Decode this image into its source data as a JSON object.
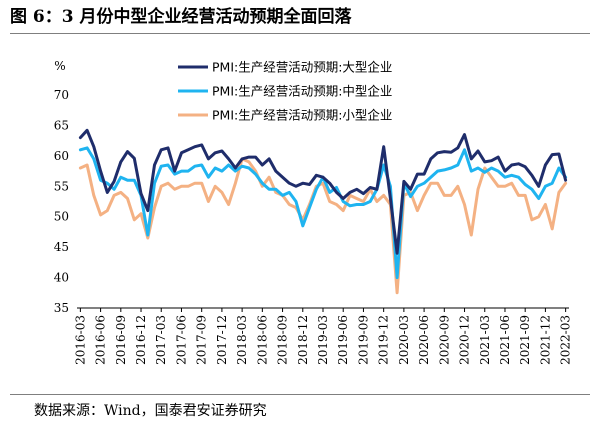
{
  "title": "图 6：3 月份中型企业经营活动预期全面回落",
  "source": "数据来源：Wind，国泰君安证券研究",
  "colors": {
    "large": "#1F2D6B",
    "medium": "#1FB4F0",
    "small": "#F4B183",
    "axis": "#000000",
    "rule": "#7F7F7F"
  },
  "chart_data": {
    "type": "line",
    "ylabel": "%",
    "ylim": [
      35,
      70
    ],
    "yticks": [
      35,
      40,
      45,
      50,
      55,
      60,
      65,
      70
    ],
    "grid": false,
    "legend_position": "top-right",
    "x": [
      "2016-03",
      "2016-04",
      "2016-05",
      "2016-06",
      "2016-07",
      "2016-08",
      "2016-09",
      "2016-10",
      "2016-11",
      "2016-12",
      "2017-01",
      "2017-02",
      "2017-03",
      "2017-04",
      "2017-05",
      "2017-06",
      "2017-07",
      "2017-08",
      "2017-09",
      "2017-10",
      "2017-11",
      "2017-12",
      "2018-01",
      "2018-02",
      "2018-03",
      "2018-04",
      "2018-05",
      "2018-06",
      "2018-07",
      "2018-08",
      "2018-09",
      "2018-10",
      "2018-11",
      "2018-12",
      "2019-01",
      "2019-02",
      "2019-03",
      "2019-04",
      "2019-05",
      "2019-06",
      "2019-07",
      "2019-08",
      "2019-09",
      "2019-10",
      "2019-11",
      "2019-12",
      "2020-01",
      "2020-02",
      "2020-03",
      "2020-04",
      "2020-05",
      "2020-06",
      "2020-07",
      "2020-08",
      "2020-09",
      "2020-10",
      "2020-11",
      "2020-12",
      "2021-01",
      "2021-02",
      "2021-03",
      "2021-04",
      "2021-05",
      "2021-06",
      "2021-07",
      "2021-08",
      "2021-09",
      "2021-10",
      "2021-11",
      "2021-12",
      "2022-01",
      "2022-02",
      "2022-03"
    ],
    "xtick_labels": [
      "2016-03",
      "2016-06",
      "2016-09",
      "2016-12",
      "2017-03",
      "2017-06",
      "2017-09",
      "2017-12",
      "2018-03",
      "2018-06",
      "2018-09",
      "2018-12",
      "2019-03",
      "2019-06",
      "2019-09",
      "2019-12",
      "2020-03",
      "2020-06",
      "2020-09",
      "2020-12",
      "2021-03",
      "2021-06",
      "2021-09",
      "2021-12",
      "2022-03"
    ],
    "series": [
      {
        "key": "large",
        "name": "PMI:生产经营活动预期:大型企业",
        "values": [
          63.0,
          64.2,
          61.5,
          57.5,
          54.0,
          55.8,
          59.0,
          60.7,
          59.6,
          53.8,
          51.0,
          58.5,
          61.0,
          61.3,
          57.5,
          60.5,
          61.0,
          61.5,
          61.8,
          59.5,
          60.5,
          60.8,
          59.5,
          58.0,
          59.5,
          59.8,
          59.8,
          58.5,
          59.5,
          57.5,
          56.5,
          55.5,
          55.0,
          55.5,
          55.3,
          56.8,
          56.5,
          55.5,
          54.0,
          53.0,
          54.0,
          54.5,
          53.8,
          54.8,
          54.5,
          61.5,
          53.0,
          44.0,
          55.8,
          54.5,
          57.0,
          57.0,
          59.5,
          60.5,
          60.7,
          60.6,
          61.3,
          63.5,
          59.5,
          60.8,
          59.0,
          59.2,
          59.8,
          57.5,
          58.5,
          58.7,
          58.2,
          56.8,
          55.0,
          58.5,
          60.2,
          60.3,
          56.0
        ]
      },
      {
        "key": "medium",
        "name": "PMI:生产经营活动预期:中型企业",
        "values": [
          61.0,
          61.3,
          59.5,
          56.0,
          55.5,
          54.5,
          56.5,
          56.0,
          56.0,
          53.5,
          47.0,
          55.5,
          58.3,
          58.5,
          57.0,
          57.5,
          57.5,
          58.3,
          58.5,
          56.5,
          58.0,
          57.5,
          58.5,
          57.5,
          58.3,
          58.0,
          57.0,
          55.5,
          54.5,
          54.5,
          53.5,
          54.0,
          52.5,
          48.5,
          51.5,
          54.5,
          56.5,
          54.0,
          54.8,
          52.5,
          51.8,
          52.0,
          52.0,
          52.5,
          54.5,
          58.5,
          55.0,
          40.0,
          55.5,
          53.3,
          55.0,
          55.5,
          56.5,
          57.5,
          57.7,
          58.0,
          58.5,
          61.0,
          57.5,
          58.0,
          57.3,
          58.0,
          57.5,
          56.5,
          56.8,
          56.5,
          55.3,
          54.5,
          53.0,
          55.0,
          55.5,
          58.0,
          56.5
        ]
      },
      {
        "key": "small",
        "name": "PMI:生产经营活动预期:小型企业",
        "values": [
          58.0,
          58.5,
          53.5,
          50.3,
          51.0,
          53.5,
          54.0,
          53.0,
          49.5,
          50.5,
          46.5,
          51.5,
          55.0,
          55.5,
          54.5,
          55.0,
          55.0,
          55.5,
          55.5,
          52.5,
          55.0,
          54.0,
          52.0,
          55.5,
          59.5,
          59.0,
          57.5,
          55.0,
          56.5,
          54.0,
          53.5,
          52.0,
          51.5,
          49.5,
          52.0,
          55.0,
          55.5,
          52.5,
          52.0,
          51.0,
          53.5,
          53.0,
          52.5,
          54.5,
          52.5,
          53.5,
          52.0,
          37.5,
          53.5,
          54.0,
          51.0,
          53.5,
          55.5,
          55.5,
          53.5,
          53.5,
          55.0,
          52.0,
          47.0,
          54.5,
          58.0,
          56.5,
          55.0,
          55.0,
          55.5,
          53.5,
          53.5,
          49.5,
          50.0,
          52.0,
          48.0,
          54.0,
          55.5
        ]
      }
    ]
  }
}
